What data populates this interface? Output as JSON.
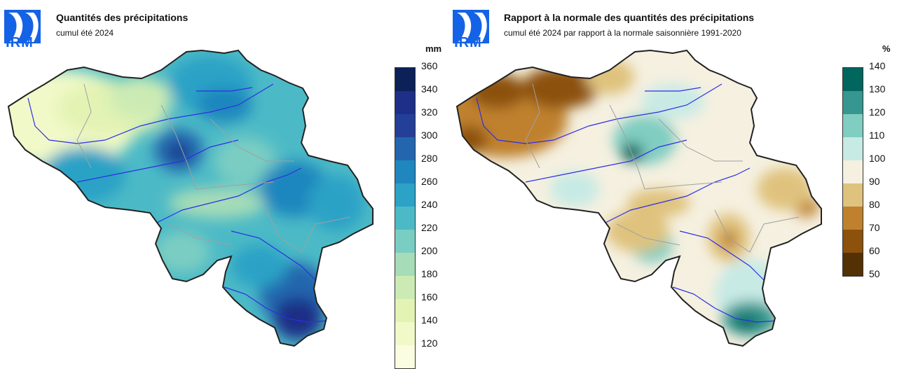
{
  "left": {
    "logo": "IRM",
    "title": "Quantités des précipitations",
    "subtitle": "cumul été 2024",
    "unit": "mm",
    "legend_ticks": [
      "360",
      "340",
      "320",
      "300",
      "280",
      "260",
      "240",
      "220",
      "200",
      "180",
      "160",
      "140",
      "120"
    ],
    "legend_colors": [
      "#0b2157",
      "#1d2f86",
      "#243f98",
      "#2366ae",
      "#1f86be",
      "#2ba2c6",
      "#4cbac6",
      "#7acdc2",
      "#a6dcb8",
      "#ccebb4",
      "#e3f3b4",
      "#f2f9c8",
      "#fbfde0"
    ]
  },
  "right": {
    "logo": "IRM",
    "title": "Rapport à la normale des quantités des précipitations",
    "subtitle": "cumul été 2024 par rapport à la normale saisonnière 1991-2020",
    "unit": "%",
    "legend_ticks": [
      "140",
      "130",
      "120",
      "110",
      "100",
      "90",
      "80",
      "70",
      "60",
      "50"
    ],
    "legend_colors": [
      "#00665e",
      "#35978f",
      "#80cdc1",
      "#c7eae5",
      "#f5f0e0",
      "#dfc27d",
      "#bf812d",
      "#8c510a",
      "#543005"
    ]
  },
  "map_icons": [
    "belgium-precipitation-map",
    "belgium-ratio-map"
  ]
}
